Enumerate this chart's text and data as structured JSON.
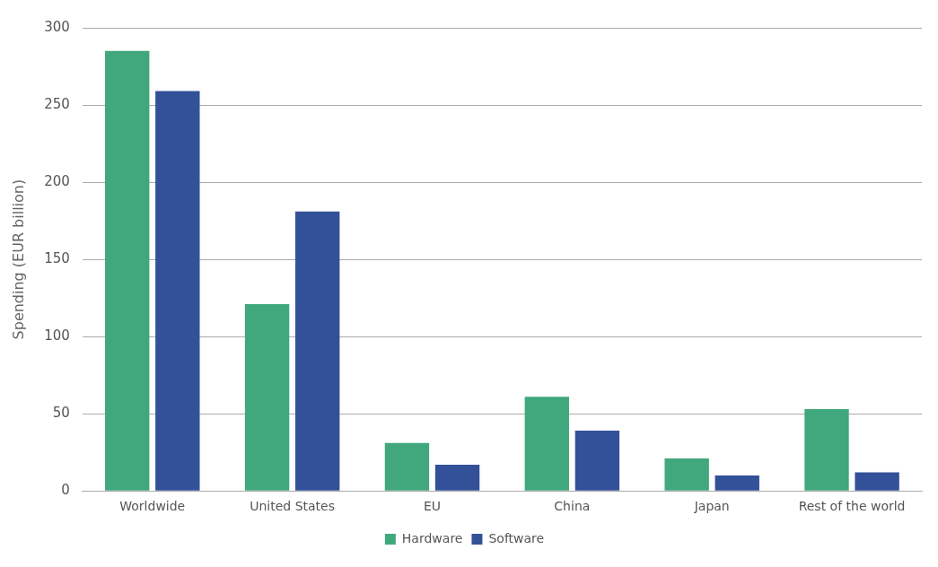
{
  "chart_data": {
    "type": "bar",
    "ylabel": "Spending (EUR billion)",
    "categories": [
      "Worldwide",
      "United States",
      "EU",
      "China",
      "Japan",
      "Rest of the world"
    ],
    "series": [
      {
        "name": "Hardware",
        "color": "#41a77c",
        "values": [
          285,
          121,
          31,
          61,
          21,
          53
        ]
      },
      {
        "name": "Software",
        "color": "#335199",
        "values": [
          259,
          181,
          17,
          39,
          10,
          12
        ]
      }
    ],
    "ylim": [
      0,
      300
    ],
    "yticks": [
      0,
      50,
      100,
      150,
      200,
      250,
      300
    ],
    "grid": "y",
    "legend": "bottom"
  }
}
